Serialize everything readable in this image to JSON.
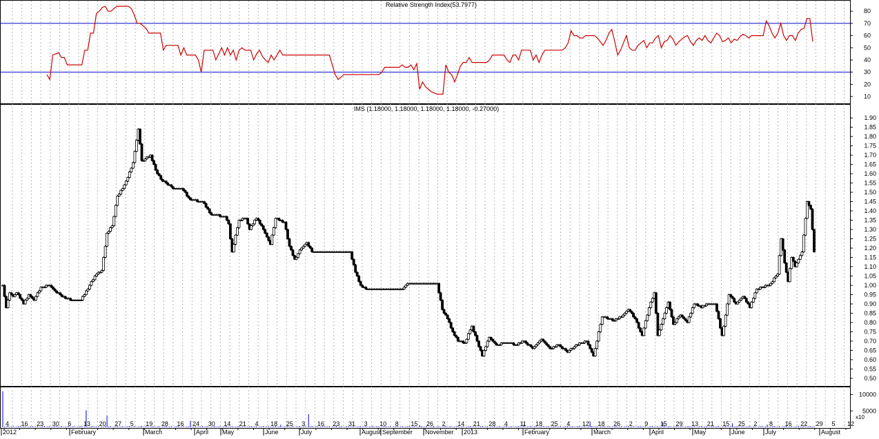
{
  "chart_data": [
    {
      "type": "line",
      "panel": "rsi",
      "title": "Relative Strength Index(53.7977)",
      "ylim": [
        5,
        88
      ],
      "yticks": [
        10,
        20,
        30,
        40,
        50,
        60,
        70,
        80
      ],
      "reference_lines": [
        30,
        70
      ],
      "series": [
        {
          "color": "#cc0000",
          "values": [
            28,
            24,
            44,
            45,
            46,
            42,
            42,
            36,
            36,
            36,
            36,
            36,
            36,
            48,
            48,
            62,
            62,
            78,
            80,
            83,
            84,
            80,
            80,
            82,
            84,
            84,
            84,
            84,
            84,
            82,
            77,
            70,
            70,
            68,
            66,
            62,
            62,
            62,
            62,
            62,
            48,
            52,
            52,
            52,
            52,
            52,
            44,
            50,
            44,
            44,
            44,
            44,
            40,
            30,
            48,
            48,
            48,
            48,
            40,
            45,
            50,
            44,
            50,
            44,
            48,
            40,
            48,
            50,
            48,
            48,
            48,
            40,
            45,
            48,
            43,
            40,
            38,
            44,
            40,
            44,
            48,
            44,
            44,
            44,
            44,
            44,
            44,
            44,
            44,
            44,
            44,
            44,
            44,
            44,
            44,
            44,
            44,
            44,
            36,
            28,
            24,
            26,
            28,
            28,
            28,
            28,
            28,
            28,
            28,
            28,
            28,
            28,
            28,
            28,
            28,
            30,
            34,
            34,
            34,
            34,
            34,
            34,
            36,
            34,
            34,
            36,
            32,
            37,
            16,
            22,
            18,
            16,
            14,
            13,
            12,
            12,
            12,
            36,
            30,
            28,
            22,
            28,
            35,
            38,
            38,
            42,
            38,
            38,
            38,
            38,
            38,
            38,
            40,
            44,
            44,
            44,
            44,
            44,
            40,
            38,
            44,
            44,
            40,
            48,
            48,
            48,
            48,
            40,
            44,
            38,
            44,
            48,
            48,
            48,
            48,
            48,
            48,
            48,
            50,
            54,
            64,
            60,
            60,
            58,
            58,
            60,
            60,
            60,
            60,
            58,
            55,
            52,
            56,
            62,
            65,
            55,
            44,
            48,
            54,
            60,
            50,
            48,
            48,
            52,
            54,
            56,
            50,
            54,
            54,
            58,
            60,
            50,
            55,
            56,
            60,
            57,
            52,
            55,
            57,
            59,
            60,
            55,
            52,
            56,
            58,
            56,
            60,
            56,
            54,
            58,
            62,
            60,
            55,
            56,
            58,
            54,
            57,
            56,
            59,
            61,
            60,
            58,
            60,
            60,
            60,
            60,
            60,
            72,
            68,
            62,
            58,
            62,
            70,
            60,
            56,
            60,
            60,
            56,
            62,
            65,
            66,
            74,
            74,
            55
          ]
        }
      ]
    },
    {
      "type": "ohlc",
      "panel": "price",
      "title": "IMS (1.18000, 1.18000, 1.18000, 1.18000, -0.27000)",
      "ylim": [
        0.47,
        1.93
      ],
      "yticks": [
        "0.50",
        "0.55",
        "0.60",
        "0.65",
        "0.70",
        "0.75",
        "0.80",
        "0.85",
        "0.90",
        "0.95",
        "1.00",
        "1.05",
        "1.10",
        "1.15",
        "1.20",
        "1.25",
        "1.30",
        "1.35",
        "1.40",
        "1.45",
        "1.50",
        "1.55",
        "1.60",
        "1.65",
        "1.70",
        "1.75",
        "1.80",
        "1.85",
        "1.90"
      ],
      "close_anchors": [
        [
          0,
          1.0
        ],
        [
          2,
          0.88
        ],
        [
          4,
          0.96
        ],
        [
          6,
          0.94
        ],
        [
          8,
          0.96
        ],
        [
          12,
          0.9
        ],
        [
          15,
          0.95
        ],
        [
          18,
          0.92
        ],
        [
          22,
          0.99
        ],
        [
          27,
          1.0
        ],
        [
          30,
          0.97
        ],
        [
          36,
          0.93
        ],
        [
          40,
          0.92
        ],
        [
          45,
          0.92
        ],
        [
          50,
          1.0
        ],
        [
          54,
          1.06
        ],
        [
          57,
          1.08
        ],
        [
          60,
          1.28
        ],
        [
          63,
          1.32
        ],
        [
          66,
          1.48
        ],
        [
          69,
          1.52
        ],
        [
          72,
          1.58
        ],
        [
          75,
          1.66
        ],
        [
          78,
          1.84
        ],
        [
          80,
          1.67
        ],
        [
          82,
          1.68
        ],
        [
          85,
          1.7
        ],
        [
          88,
          1.62
        ],
        [
          91,
          1.57
        ],
        [
          94,
          1.55
        ],
        [
          98,
          1.52
        ],
        [
          103,
          1.52
        ],
        [
          108,
          1.46
        ],
        [
          115,
          1.45
        ],
        [
          120,
          1.38
        ],
        [
          128,
          1.37
        ],
        [
          130,
          1.33
        ],
        [
          132,
          1.18
        ],
        [
          136,
          1.35
        ],
        [
          140,
          1.36
        ],
        [
          142,
          1.3
        ],
        [
          146,
          1.36
        ],
        [
          150,
          1.3
        ],
        [
          154,
          1.22
        ],
        [
          157,
          1.36
        ],
        [
          162,
          1.34
        ],
        [
          165,
          1.21
        ],
        [
          168,
          1.14
        ],
        [
          172,
          1.2
        ],
        [
          175,
          1.23
        ],
        [
          178,
          1.18
        ],
        [
          200,
          1.18
        ],
        [
          203,
          1.07
        ],
        [
          206,
          1.0
        ],
        [
          209,
          0.98
        ],
        [
          230,
          0.98
        ],
        [
          233,
          1.01
        ],
        [
          250,
          1.01
        ],
        [
          253,
          0.87
        ],
        [
          256,
          0.82
        ],
        [
          259,
          0.75
        ],
        [
          262,
          0.7
        ],
        [
          266,
          0.69
        ],
        [
          270,
          0.78
        ],
        [
          273,
          0.7
        ],
        [
          276,
          0.62
        ],
        [
          280,
          0.72
        ],
        [
          284,
          0.68
        ],
        [
          290,
          0.69
        ],
        [
          296,
          0.68
        ],
        [
          300,
          0.7
        ],
        [
          305,
          0.66
        ],
        [
          310,
          0.71
        ],
        [
          315,
          0.66
        ],
        [
          320,
          0.68
        ],
        [
          325,
          0.64
        ],
        [
          330,
          0.68
        ],
        [
          336,
          0.7
        ],
        [
          340,
          0.62
        ],
        [
          345,
          0.83
        ],
        [
          349,
          0.82
        ],
        [
          352,
          0.81
        ],
        [
          356,
          0.83
        ],
        [
          360,
          0.87
        ],
        [
          364,
          0.82
        ],
        [
          368,
          0.73
        ],
        [
          372,
          0.88
        ],
        [
          375,
          0.96
        ],
        [
          377,
          0.73
        ],
        [
          380,
          0.82
        ],
        [
          383,
          0.91
        ],
        [
          386,
          0.79
        ],
        [
          390,
          0.84
        ],
        [
          394,
          0.8
        ],
        [
          398,
          0.9
        ],
        [
          402,
          0.88
        ],
        [
          406,
          0.9
        ],
        [
          410,
          0.9
        ],
        [
          414,
          0.73
        ],
        [
          418,
          0.95
        ],
        [
          422,
          0.9
        ],
        [
          426,
          0.94
        ],
        [
          430,
          0.88
        ],
        [
          434,
          0.98
        ],
        [
          438,
          0.99
        ],
        [
          442,
          1.01
        ],
        [
          446,
          1.06
        ],
        [
          448,
          1.25
        ],
        [
          450,
          1.12
        ],
        [
          452,
          1.02
        ],
        [
          454,
          1.15
        ],
        [
          456,
          1.1
        ],
        [
          460,
          1.18
        ],
        [
          463,
          1.45
        ],
        [
          465,
          1.41
        ],
        [
          467,
          1.18
        ]
      ]
    },
    {
      "type": "bar",
      "panel": "volume",
      "ylim": [
        0,
        12000
      ],
      "yticks": [
        "5000",
        "10000"
      ],
      "corner_label": "x10",
      "spikes": [
        [
          0,
          11000
        ],
        [
          48,
          5200
        ],
        [
          60,
          3500
        ],
        [
          108,
          2000
        ],
        [
          160,
          800
        ],
        [
          176,
          4000
        ],
        [
          240,
          600
        ],
        [
          300,
          800
        ],
        [
          338,
          1800
        ],
        [
          380,
          1500
        ],
        [
          420,
          1200
        ],
        [
          440,
          800
        ]
      ]
    }
  ],
  "x_axis": {
    "day_labels": [
      "4",
      "16",
      "23",
      "30",
      "6",
      "13",
      "20",
      "27",
      "5",
      "19",
      "28",
      "16",
      "24",
      "30",
      "14",
      "21",
      "4",
      "18",
      "25",
      "3",
      "16",
      "23",
      "31",
      "3",
      "10",
      "8",
      "15",
      "26",
      "2",
      "14",
      "21",
      "28",
      "4",
      "11",
      "18",
      "25",
      "4",
      "12",
      "18",
      "26",
      "2",
      "9",
      "15",
      "29",
      "13",
      "21",
      "15",
      "25",
      "2",
      "8",
      "16",
      "22",
      "29",
      "5",
      "12"
    ],
    "month_labels": [
      "2012",
      "February",
      "March",
      "April",
      "May",
      "June",
      "July",
      "August",
      "September",
      "November",
      "2013",
      "February",
      "March",
      "April",
      "May",
      "June",
      "July",
      "August"
    ]
  }
}
